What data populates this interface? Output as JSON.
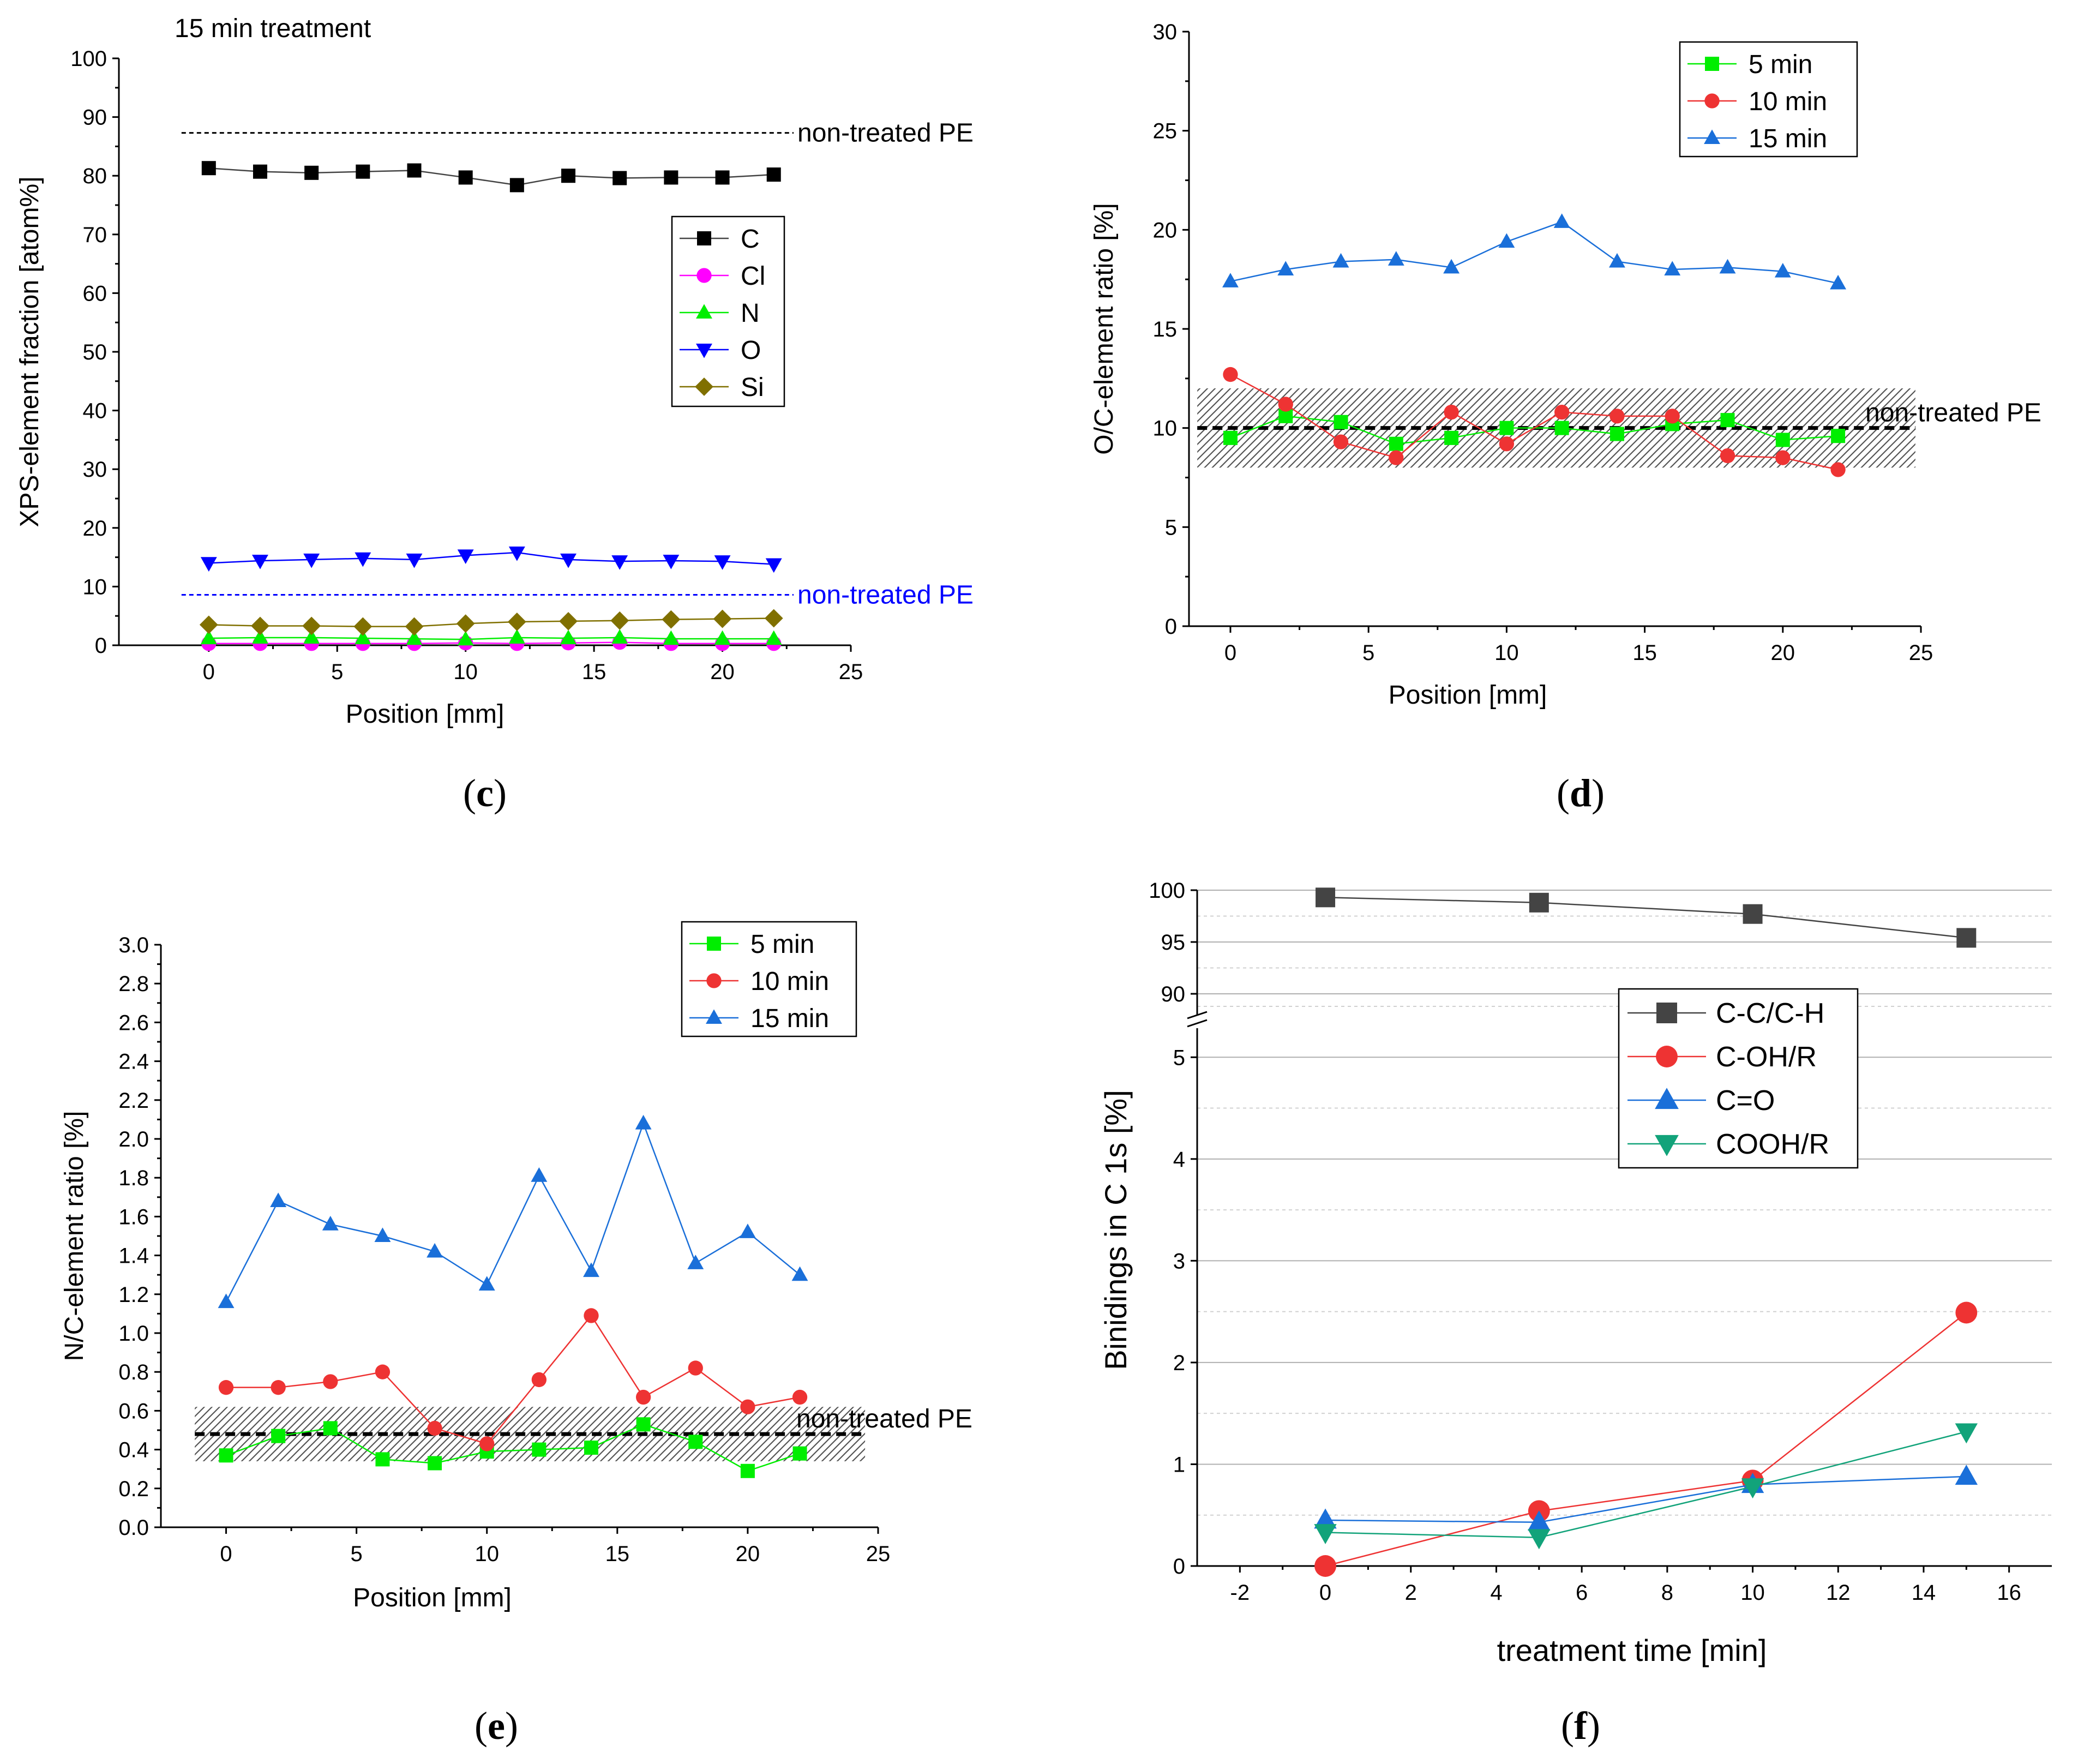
{
  "colors": {
    "black": "#000000",
    "magenta": "#ff00ff",
    "green": "#00ee00",
    "blue": "#0000ff",
    "olive": "#807000",
    "red": "#ee3333",
    "skyblue": "#1a6fd9",
    "dark": "#444444",
    "teal": "#12a37a"
  },
  "chart_data": [
    {
      "id": "c",
      "panel_label": "c",
      "type": "line",
      "title": "15 min treatment",
      "xlabel": "Position [mm]",
      "ylabel": "XPS-element fraction [atom%]",
      "xlim": [
        -3.5,
        25
      ],
      "ylim": [
        0,
        100
      ],
      "xticks": [
        0,
        5,
        10,
        15,
        20,
        25
      ],
      "yticks": [
        0,
        10,
        20,
        30,
        40,
        50,
        60,
        70,
        80,
        90,
        100
      ],
      "x": [
        0,
        2,
        4,
        6,
        8,
        10,
        12,
        14,
        16,
        18,
        20,
        22
      ],
      "series": [
        {
          "name": "C",
          "marker": "square",
          "color": "#000000",
          "values": [
            81.3,
            80.7,
            80.5,
            80.7,
            80.9,
            79.7,
            78.4,
            80.0,
            79.6,
            79.7,
            79.7,
            80.2
          ]
        },
        {
          "name": "Cl",
          "marker": "circle",
          "color": "#ff00ff",
          "values": [
            0.3,
            0.3,
            0.3,
            0.3,
            0.3,
            0.4,
            0.3,
            0.4,
            0.5,
            0.3,
            0.3,
            0.3
          ]
        },
        {
          "name": "N",
          "marker": "triangle-up",
          "color": "#00ee00",
          "values": [
            1.2,
            1.3,
            1.3,
            1.2,
            1.1,
            1.0,
            1.3,
            1.2,
            1.3,
            1.1,
            1.1,
            1.1
          ]
        },
        {
          "name": "O",
          "marker": "triangle-down",
          "color": "#0000ff",
          "values": [
            14.0,
            14.4,
            14.6,
            14.8,
            14.6,
            15.3,
            15.8,
            14.6,
            14.3,
            14.4,
            14.3,
            13.8
          ]
        },
        {
          "name": "Si",
          "marker": "diamond",
          "color": "#807000",
          "values": [
            3.5,
            3.3,
            3.3,
            3.2,
            3.2,
            3.7,
            4.0,
            4.1,
            4.2,
            4.4,
            4.5,
            4.6
          ]
        }
      ],
      "reference_lines": [
        {
          "value": 87.3,
          "label": "non-treated PE",
          "color": "#000000"
        },
        {
          "value": 8.6,
          "label": "non-treated PE",
          "color": "#0000ff"
        }
      ]
    },
    {
      "id": "d",
      "panel_label": "d",
      "type": "line",
      "xlabel": "Position [mm]",
      "ylabel": "O/C-element ratio [%]",
      "xlim": [
        -1.5,
        25
      ],
      "ylim": [
        0,
        30
      ],
      "xticks": [
        0,
        5,
        10,
        15,
        20,
        25
      ],
      "yticks": [
        0,
        5,
        10,
        15,
        20,
        25,
        30
      ],
      "x": [
        0,
        2,
        4,
        6,
        8,
        10,
        12,
        14,
        16,
        18,
        20,
        22
      ],
      "series": [
        {
          "name": "5 min",
          "marker": "square",
          "color": "#00ee00",
          "values": [
            9.5,
            10.6,
            10.3,
            9.2,
            9.5,
            10.0,
            10.0,
            9.7,
            10.2,
            10.4,
            9.4,
            9.6
          ]
        },
        {
          "name": "10 min",
          "marker": "circle",
          "color": "#ee3333",
          "values": [
            12.7,
            11.2,
            9.3,
            8.5,
            10.8,
            9.2,
            10.8,
            10.6,
            10.6,
            8.6,
            8.5,
            7.9
          ]
        },
        {
          "name": "15 min",
          "marker": "triangle-up",
          "color": "#1a6fd9",
          "values": [
            17.4,
            18.0,
            18.4,
            18.5,
            18.1,
            19.4,
            20.4,
            18.4,
            18.0,
            18.1,
            17.9,
            17.3
          ]
        }
      ],
      "reference_lines": [
        {
          "value": 10.0,
          "label": "non-treated PE",
          "color": "#000000",
          "band": [
            8.0,
            12.0
          ]
        }
      ]
    },
    {
      "id": "e",
      "panel_label": "e",
      "type": "line",
      "xlabel": "Position [mm]",
      "ylabel": "N/C-element ratio [%]",
      "xlim": [
        -2.5,
        25
      ],
      "ylim": [
        0,
        3.0
      ],
      "xticks": [
        0,
        5,
        10,
        15,
        20,
        25
      ],
      "yticks": [
        0.0,
        0.2,
        0.4,
        0.6,
        0.8,
        1.0,
        1.2,
        1.4,
        1.6,
        1.8,
        2.0,
        2.2,
        2.4,
        2.6,
        2.8,
        3.0
      ],
      "x": [
        0,
        2,
        4,
        6,
        8,
        10,
        12,
        14,
        16,
        18,
        20,
        22
      ],
      "series": [
        {
          "name": "5 min",
          "marker": "square",
          "color": "#00ee00",
          "values": [
            0.37,
            0.47,
            0.51,
            0.35,
            0.33,
            0.39,
            0.4,
            0.41,
            0.53,
            0.44,
            0.29,
            0.38
          ]
        },
        {
          "name": "10 min",
          "marker": "circle",
          "color": "#ee3333",
          "values": [
            0.72,
            0.72,
            0.75,
            0.8,
            0.51,
            0.43,
            0.76,
            1.09,
            0.67,
            0.82,
            0.62,
            0.67
          ]
        },
        {
          "name": "15 min",
          "marker": "triangle-up",
          "color": "#1a6fd9",
          "values": [
            1.16,
            1.68,
            1.56,
            1.5,
            1.42,
            1.25,
            1.81,
            1.32,
            2.08,
            1.36,
            1.52,
            1.3
          ]
        }
      ],
      "reference_lines": [
        {
          "value": 0.48,
          "label": "non-treated PE",
          "color": "#000000",
          "band": [
            0.34,
            0.62
          ]
        }
      ]
    },
    {
      "id": "f",
      "panel_label": "f",
      "type": "line",
      "xlabel": "treatment time [min]",
      "ylabel": "Binidings in C 1s [%]",
      "xlim": [
        -3,
        17
      ],
      "ylim_lower": [
        0,
        5.5
      ],
      "ylim_upper": [
        88,
        100
      ],
      "xticks": [
        -2,
        0,
        2,
        4,
        6,
        8,
        10,
        12,
        14,
        16
      ],
      "yticks_lower": [
        0,
        1,
        2,
        3,
        4,
        5
      ],
      "yticks_upper": [
        90,
        95,
        100
      ],
      "x": [
        0,
        5,
        10,
        15
      ],
      "series": [
        {
          "name": "C-C/C-H",
          "marker": "square",
          "color": "#444444",
          "values": [
            99.3,
            98.8,
            97.7,
            95.4
          ]
        },
        {
          "name": "C-OH/R",
          "marker": "circle",
          "color": "#ee3333",
          "values": [
            0.0,
            0.54,
            0.84,
            2.49
          ]
        },
        {
          "name": "C=O",
          "marker": "triangle-up",
          "color": "#1a6fd9",
          "values": [
            0.45,
            0.43,
            0.8,
            0.88
          ]
        },
        {
          "name": "COOH/R",
          "marker": "triangle-down",
          "color": "#12a37a",
          "values": [
            0.33,
            0.28,
            0.78,
            1.32
          ]
        }
      ]
    }
  ]
}
